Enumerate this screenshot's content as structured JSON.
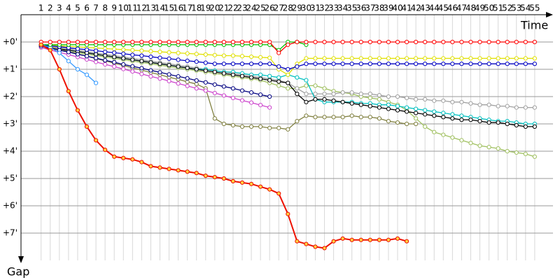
{
  "chart_data": {
    "type": "line",
    "x_label": "Time",
    "y_label": "Gap",
    "x": [
      1,
      2,
      3,
      4,
      5,
      6,
      7,
      8,
      9,
      10,
      11,
      12,
      13,
      14,
      15,
      16,
      17,
      18,
      19,
      20,
      21,
      22,
      23,
      24,
      25,
      26,
      27,
      28,
      29,
      30,
      31,
      32,
      33,
      34,
      35,
      36,
      37,
      38,
      39,
      40,
      41,
      42,
      43,
      44,
      45,
      46,
      47,
      48,
      49,
      50,
      51,
      52,
      53,
      54,
      55
    ],
    "xlim": [
      -1.2,
      57
    ],
    "xticks": [
      1,
      2,
      3,
      4,
      5,
      6,
      7,
      8,
      9,
      10,
      11,
      12,
      13,
      14,
      15,
      16,
      17,
      18,
      19,
      20,
      21,
      22,
      23,
      24,
      25,
      26,
      27,
      28,
      29,
      30,
      31,
      32,
      33,
      34,
      35,
      36,
      37,
      38,
      39,
      40,
      41,
      42,
      43,
      44,
      45,
      46,
      47,
      48,
      49,
      50,
      51,
      52,
      53,
      54,
      55
    ],
    "ylim": [
      -1,
      8
    ],
    "y_inverted": true,
    "yticks": [
      {
        "value": 0,
        "label": "+0'"
      },
      {
        "value": 1,
        "label": "+1'"
      },
      {
        "value": 2,
        "label": "+2'"
      },
      {
        "value": 3,
        "label": "+3'"
      },
      {
        "value": 4,
        "label": "+4'"
      },
      {
        "value": 5,
        "label": "+5'"
      },
      {
        "value": 6,
        "label": "+6'"
      },
      {
        "value": 7,
        "label": "+7'"
      }
    ],
    "grid": true,
    "series": [
      {
        "color": "#a0c060",
        "values": [
          0.2,
          0.25,
          0.3,
          0.35,
          0.4,
          0.45,
          0.5,
          0.55,
          0.6,
          0.65,
          0.7,
          0.75,
          0.8,
          0.85,
          0.9,
          0.95,
          1.0,
          1.05,
          1.1,
          1.15,
          1.2,
          1.25,
          1.3,
          1.35,
          1.4,
          1.5,
          1.6,
          1.7,
          1.7,
          1.6,
          1.6,
          1.7,
          1.8,
          1.85,
          1.9,
          2.0,
          2.05,
          2.1,
          2.2,
          2.3,
          2.5,
          2.8,
          3.1,
          3.3,
          3.4,
          3.5,
          3.6,
          3.7,
          3.8,
          3.85,
          3.9,
          4.0,
          4.05,
          4.1,
          4.2
        ]
      },
      {
        "color": "#a0a0a0",
        "values": [
          0.1,
          0.15,
          0.2,
          0.25,
          0.3,
          0.35,
          0.4,
          0.45,
          0.5,
          0.55,
          0.6,
          0.65,
          0.7,
          0.75,
          0.8,
          0.85,
          0.9,
          0.95,
          1.0,
          1.05,
          1.1,
          1.15,
          1.2,
          1.25,
          1.3,
          1.35,
          1.4,
          1.5,
          1.7,
          1.9,
          1.9,
          1.9,
          1.9,
          1.85,
          1.85,
          1.9,
          1.9,
          1.95,
          2.0,
          2.0,
          2.05,
          2.1,
          2.1,
          2.15,
          2.15,
          2.2,
          2.2,
          2.25,
          2.3,
          2.3,
          2.35,
          2.35,
          2.4,
          2.4,
          2.4
        ]
      },
      {
        "color": "#00c0c0",
        "values": [
          0.15,
          0.2,
          0.25,
          0.3,
          0.35,
          0.4,
          0.45,
          0.5,
          0.55,
          0.6,
          0.65,
          0.7,
          0.75,
          0.8,
          0.85,
          0.9,
          0.95,
          1.0,
          1.0,
          1.05,
          1.1,
          1.1,
          1.15,
          1.2,
          1.2,
          1.25,
          1.3,
          1.2,
          1.3,
          1.4,
          2.1,
          2.2,
          2.2,
          2.2,
          2.2,
          2.25,
          2.25,
          2.3,
          2.3,
          2.35,
          2.4,
          2.45,
          2.5,
          2.55,
          2.6,
          2.65,
          2.7,
          2.75,
          2.8,
          2.85,
          2.9,
          2.9,
          2.95,
          3.0,
          3.0
        ]
      },
      {
        "color": "#000000",
        "values": [
          0.15,
          0.2,
          0.25,
          0.3,
          0.35,
          0.4,
          0.45,
          0.5,
          0.55,
          0.6,
          0.65,
          0.7,
          0.75,
          0.8,
          0.85,
          0.9,
          0.95,
          1.0,
          1.05,
          1.1,
          1.15,
          1.2,
          1.25,
          1.3,
          1.35,
          1.4,
          1.45,
          1.5,
          1.9,
          2.2,
          2.1,
          2.1,
          2.15,
          2.2,
          2.25,
          2.3,
          2.35,
          2.4,
          2.45,
          2.5,
          2.55,
          2.6,
          2.65,
          2.7,
          2.75,
          2.8,
          2.85,
          2.85,
          2.9,
          2.95,
          2.95,
          3.0,
          3.05,
          3.1,
          3.1
        ]
      },
      {
        "color": "#808040",
        "values": [
          0.1,
          0.18,
          0.27,
          0.35,
          0.44,
          0.52,
          0.61,
          0.69,
          0.78,
          0.86,
          0.95,
          1.03,
          1.12,
          1.2,
          1.29,
          1.37,
          1.46,
          1.54,
          1.7,
          2.8,
          3.0,
          3.05,
          3.1,
          3.1,
          3.1,
          3.15,
          3.15,
          3.2,
          2.9,
          2.7,
          2.75,
          2.75,
          2.75,
          2.75,
          2.7,
          2.75,
          2.75,
          2.8,
          2.9,
          2.95,
          3.0,
          3.0,
          null,
          null,
          null,
          null,
          null,
          null,
          null,
          null,
          null,
          null,
          null,
          null,
          null
        ]
      },
      {
        "color": "#cc44cc",
        "values": [
          0.2,
          0.29,
          0.38,
          0.46,
          0.55,
          0.64,
          0.73,
          0.82,
          0.9,
          0.99,
          1.08,
          1.17,
          1.26,
          1.34,
          1.43,
          1.52,
          1.61,
          1.7,
          1.78,
          1.87,
          1.96,
          2.05,
          2.14,
          2.22,
          2.31,
          2.4,
          null,
          null,
          null,
          null,
          null,
          null,
          null,
          null,
          null,
          null,
          null,
          null,
          null,
          null,
          null,
          null,
          null,
          null,
          null,
          null,
          null,
          null,
          null,
          null,
          null,
          null,
          null,
          null,
          null
        ]
      },
      {
        "color": "#000080",
        "values": [
          0.15,
          0.22,
          0.3,
          0.37,
          0.45,
          0.52,
          0.59,
          0.67,
          0.74,
          0.82,
          0.89,
          0.96,
          1.04,
          1.11,
          1.19,
          1.26,
          1.33,
          1.41,
          1.48,
          1.56,
          1.63,
          1.7,
          1.78,
          1.85,
          1.93,
          2.0,
          null,
          null,
          null,
          null,
          null,
          null,
          null,
          null,
          null,
          null,
          null,
          null,
          null,
          null,
          null,
          null,
          null,
          null,
          null,
          null,
          null,
          null,
          null,
          null,
          null,
          null,
          null,
          null,
          null
        ]
      },
      {
        "color": "#e0e000",
        "values": [
          0.1,
          0.12,
          0.14,
          0.16,
          0.18,
          0.2,
          0.22,
          0.24,
          0.26,
          0.28,
          0.3,
          0.32,
          0.34,
          0.36,
          0.38,
          0.4,
          0.42,
          0.44,
          0.46,
          0.48,
          0.5,
          0.5,
          0.52,
          0.54,
          0.56,
          0.58,
          1.0,
          1.2,
          0.8,
          0.6,
          0.6,
          0.6,
          0.6,
          0.6,
          0.6,
          0.6,
          0.6,
          0.6,
          0.6,
          0.6,
          0.6,
          0.6,
          0.6,
          0.6,
          0.6,
          0.6,
          0.6,
          0.6,
          0.6,
          0.6,
          0.6,
          0.6,
          0.6,
          0.6,
          0.6
        ]
      },
      {
        "color": "#0000c0",
        "values": [
          0.1,
          0.14,
          0.17,
          0.21,
          0.25,
          0.28,
          0.32,
          0.36,
          0.39,
          0.43,
          0.47,
          0.5,
          0.54,
          0.58,
          0.61,
          0.65,
          0.69,
          0.72,
          0.76,
          0.8,
          0.8,
          0.8,
          0.8,
          0.8,
          0.8,
          0.8,
          0.9,
          1.0,
          0.9,
          0.8,
          0.8,
          0.8,
          0.8,
          0.8,
          0.8,
          0.8,
          0.8,
          0.8,
          0.8,
          0.8,
          0.8,
          0.8,
          0.8,
          0.8,
          0.8,
          0.8,
          0.8,
          0.8,
          0.8,
          0.8,
          0.8,
          0.8,
          0.8,
          0.8,
          0.8
        ]
      },
      {
        "color": "#3399ff",
        "values": [
          0.1,
          0.2,
          0.4,
          0.7,
          1.0,
          1.2,
          1.5,
          null,
          null,
          null,
          null,
          null,
          null,
          null,
          null,
          null,
          null,
          null,
          null,
          null,
          null,
          null,
          null,
          null,
          null,
          null,
          null,
          null,
          null,
          null,
          null,
          null,
          null,
          null,
          null,
          null,
          null,
          null,
          null,
          null,
          null,
          null,
          null,
          null,
          null,
          null,
          null,
          null,
          null,
          null,
          null,
          null,
          null,
          null,
          null
        ]
      },
      {
        "color": "#00c000",
        "values": [
          0.1,
          0.1,
          0.1,
          0.1,
          0.1,
          0.1,
          0.1,
          0.1,
          0.1,
          0.1,
          0.1,
          0.1,
          0.1,
          0.1,
          0.1,
          0.1,
          0.1,
          0.1,
          0.1,
          0.1,
          0.1,
          0.1,
          0.1,
          0.1,
          0.1,
          0.1,
          0.3,
          0,
          0,
          0.1,
          null,
          null,
          null,
          null,
          null,
          null,
          null,
          null,
          null,
          null,
          null,
          null,
          null,
          null,
          null,
          null,
          null,
          null,
          null,
          null,
          null,
          null,
          null,
          null,
          null
        ]
      },
      {
        "color": "#ff0000",
        "values": [
          0,
          0,
          0,
          0,
          0,
          0,
          0,
          0,
          0,
          0,
          0,
          0,
          0,
          0,
          0,
          0,
          0,
          0,
          0,
          0,
          0,
          0,
          0,
          0,
          0,
          0,
          0.4,
          0.1,
          0,
          0,
          0,
          0,
          0,
          0,
          0,
          0,
          0,
          0,
          0,
          0,
          0,
          0,
          0,
          0,
          0,
          0,
          0,
          0,
          0,
          0,
          0,
          0,
          0,
          0,
          0
        ]
      },
      {
        "color": "#ee1100",
        "marker_fill": "#ffd040",
        "line_width": 2,
        "values": [
          0.1,
          0.3,
          1.0,
          1.8,
          2.5,
          3.1,
          3.6,
          3.95,
          4.2,
          4.25,
          4.3,
          4.4,
          4.55,
          4.6,
          4.65,
          4.7,
          4.75,
          4.8,
          4.9,
          4.95,
          5.0,
          5.1,
          5.15,
          5.2,
          5.3,
          5.4,
          5.55,
          6.3,
          7.3,
          7.4,
          7.5,
          7.55,
          7.3,
          7.2,
          7.25,
          7.25,
          7.25,
          7.25,
          7.25,
          7.2,
          7.3,
          null,
          null,
          null,
          null,
          null,
          null,
          null,
          null,
          null,
          null,
          null,
          null,
          null,
          null
        ]
      }
    ]
  }
}
